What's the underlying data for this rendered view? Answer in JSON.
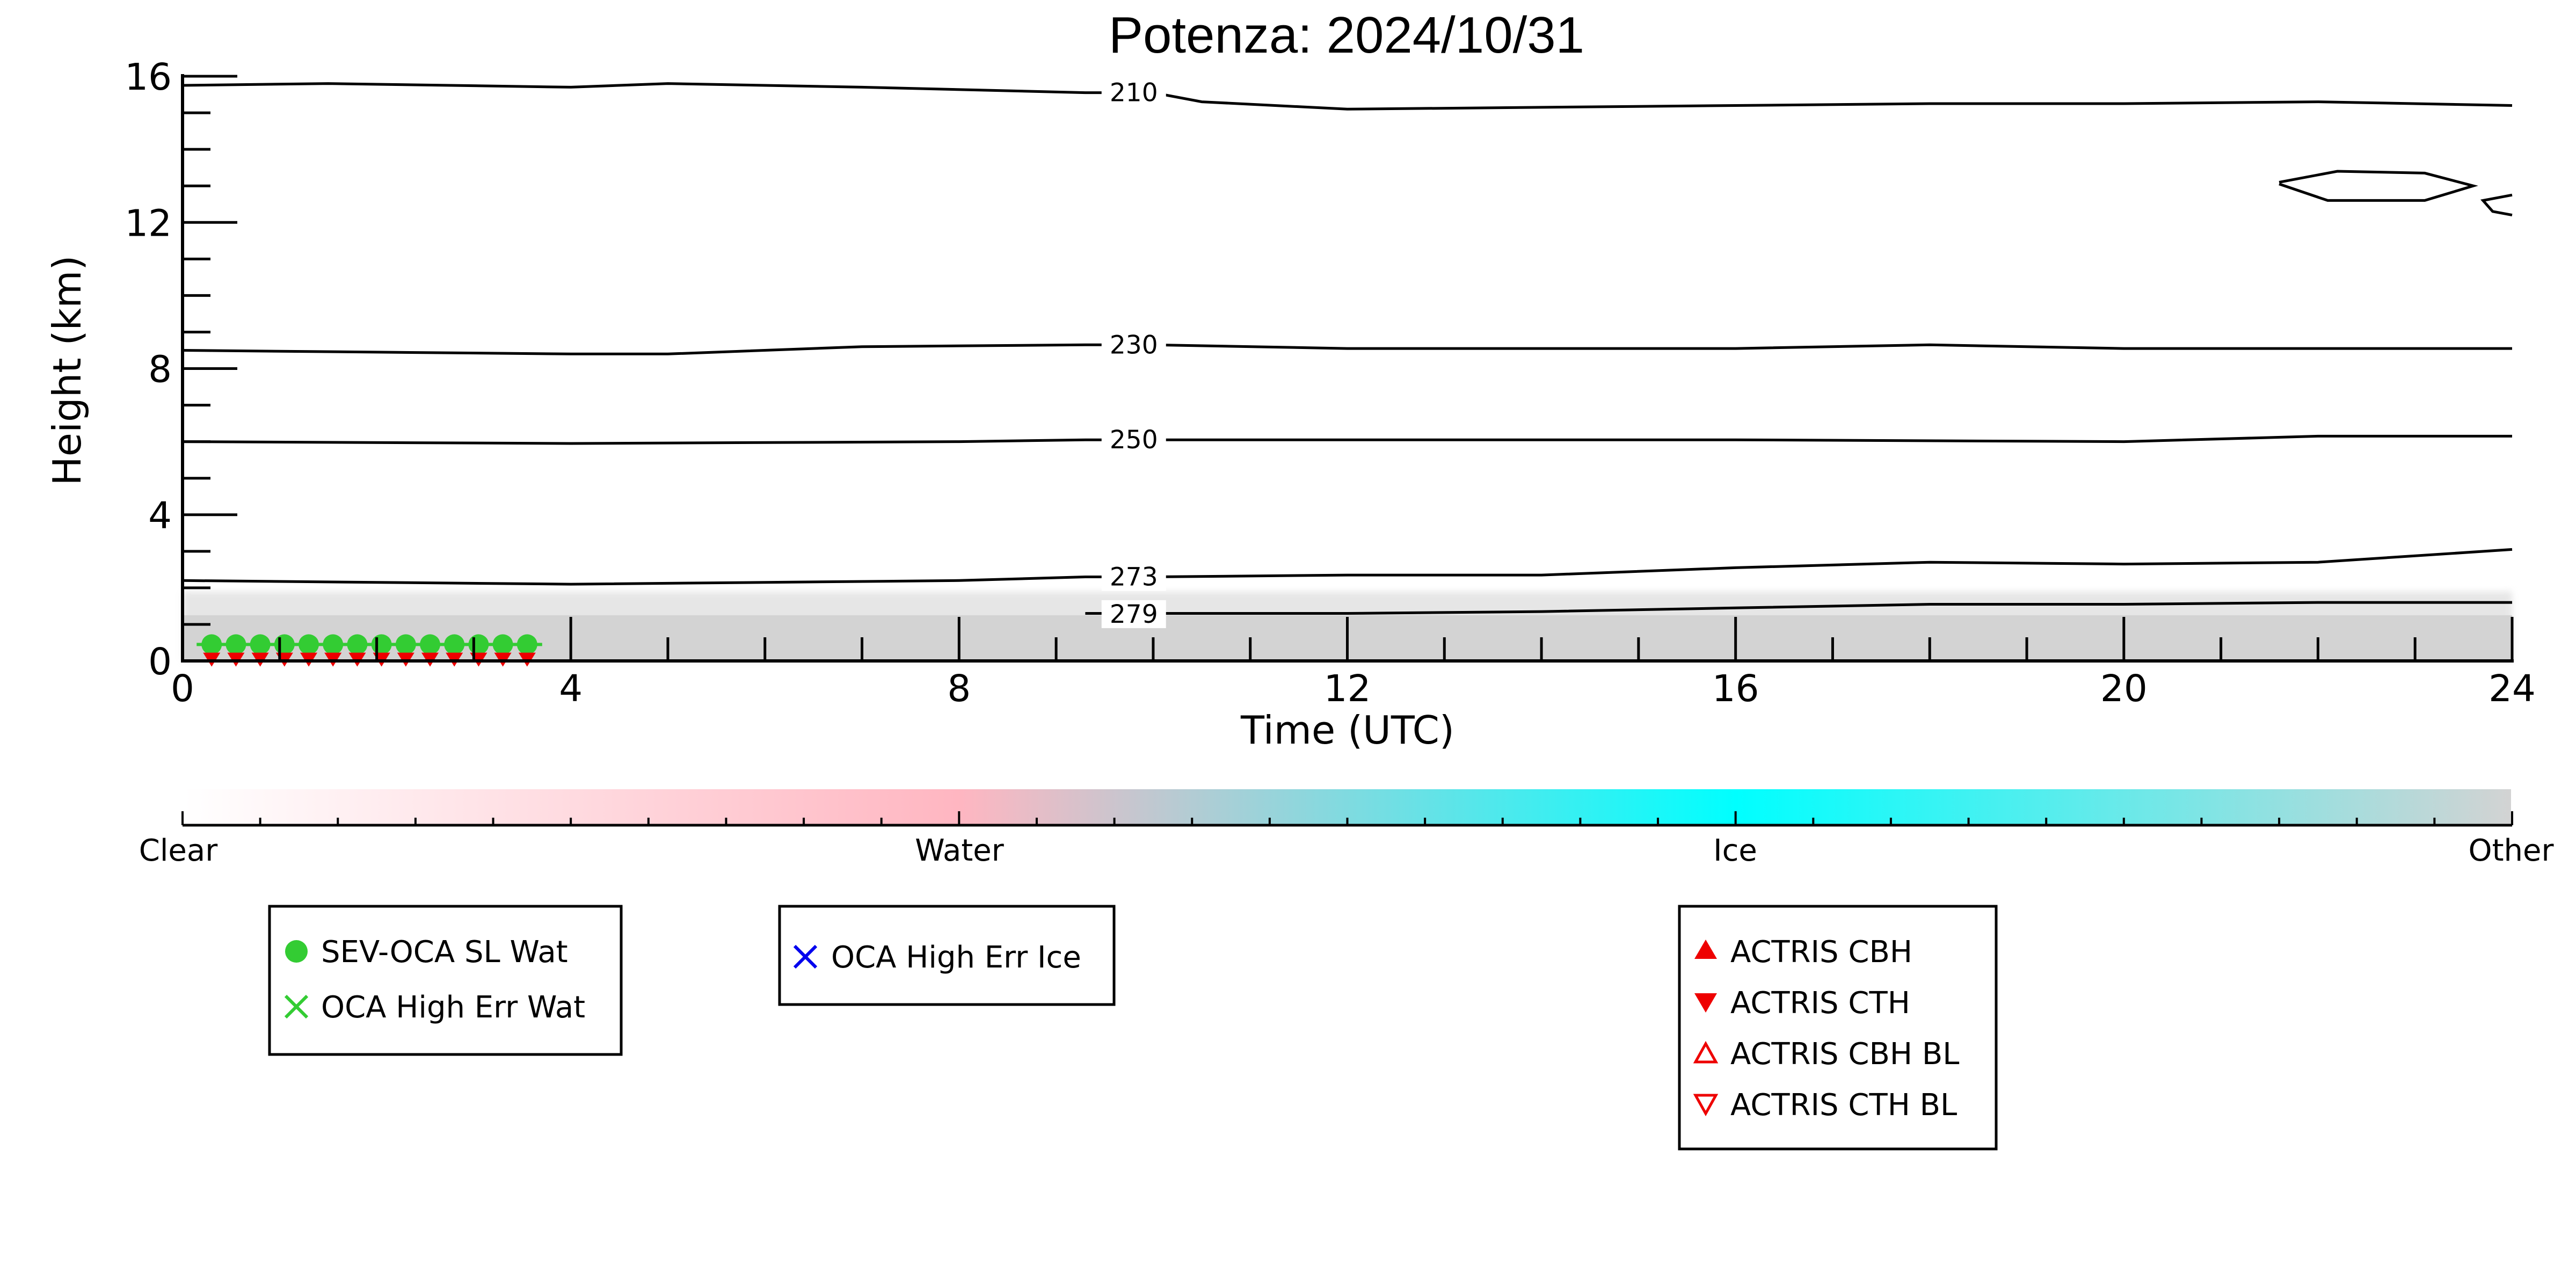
{
  "chart_data": {
    "type": "time-height cloud classification",
    "title": "Potenza: 2024/10/31",
    "xlabel": "Time (UTC)",
    "ylabel": "Height (km)",
    "xlim": [
      0,
      24
    ],
    "ylim": [
      0,
      16
    ],
    "x_ticks": [
      "0",
      "4",
      "8",
      "12",
      "16",
      "20",
      "24"
    ],
    "y_ticks": [
      "0",
      "4",
      "8",
      "12",
      "16"
    ],
    "temperature_contours": [
      {
        "label": "210",
        "points": [
          [
            0,
            15.75
          ],
          [
            1.5,
            15.8
          ],
          [
            4,
            15.7
          ],
          [
            5,
            15.8
          ],
          [
            7,
            15.7
          ],
          [
            9.3,
            15.55
          ],
          [
            10,
            15.55
          ],
          [
            10.5,
            15.3
          ],
          [
            12,
            15.1
          ],
          [
            14,
            15.15
          ],
          [
            16,
            15.2
          ],
          [
            18,
            15.25
          ],
          [
            20,
            15.25
          ],
          [
            22,
            15.3
          ],
          [
            24,
            15.2
          ]
        ]
      },
      {
        "label": "230",
        "points": [
          [
            0,
            8.5
          ],
          [
            2,
            8.45
          ],
          [
            4,
            8.4
          ],
          [
            5,
            8.4
          ],
          [
            7,
            8.6
          ],
          [
            9.3,
            8.65
          ],
          [
            10,
            8.65
          ],
          [
            12,
            8.55
          ],
          [
            14,
            8.55
          ],
          [
            16,
            8.55
          ],
          [
            18,
            8.65
          ],
          [
            20,
            8.55
          ],
          [
            22,
            8.55
          ],
          [
            24,
            8.55
          ]
        ]
      },
      {
        "label": "250",
        "points": [
          [
            0,
            6.0
          ],
          [
            4,
            5.95
          ],
          [
            8,
            6.0
          ],
          [
            9.3,
            6.05
          ],
          [
            10,
            6.05
          ],
          [
            12,
            6.05
          ],
          [
            16,
            6.05
          ],
          [
            20,
            6.0
          ],
          [
            22,
            6.15
          ],
          [
            24,
            6.15
          ]
        ]
      },
      {
        "label": "273",
        "points": [
          [
            0,
            2.2
          ],
          [
            4,
            2.1
          ],
          [
            8,
            2.2
          ],
          [
            9.3,
            2.3
          ],
          [
            10,
            2.3
          ],
          [
            12,
            2.35
          ],
          [
            14,
            2.35
          ],
          [
            16,
            2.55
          ],
          [
            18,
            2.7
          ],
          [
            20,
            2.65
          ],
          [
            22,
            2.7
          ],
          [
            24,
            3.05
          ]
        ]
      },
      {
        "label": "279",
        "points": [
          [
            9.3,
            1.3
          ],
          [
            10,
            1.3
          ],
          [
            12,
            1.3
          ],
          [
            14,
            1.35
          ],
          [
            16,
            1.45
          ],
          [
            18,
            1.55
          ],
          [
            20,
            1.55
          ],
          [
            22,
            1.6
          ],
          [
            24,
            1.6
          ]
        ]
      }
    ],
    "contour_label_positions": [
      {
        "label": "210",
        "x": 9.8,
        "y": 15.55
      },
      {
        "label": "230",
        "x": 9.8,
        "y": 8.65
      },
      {
        "label": "250",
        "x": 9.8,
        "y": 6.05
      },
      {
        "label": "273",
        "x": 9.8,
        "y": 2.3
      },
      {
        "label": "279",
        "x": 9.8,
        "y": 1.28
      }
    ],
    "closed_contour": {
      "points": [
        [
          21.6,
          13.1
        ],
        [
          22.2,
          13.4
        ],
        [
          23.1,
          13.35
        ],
        [
          23.6,
          13.0
        ],
        [
          23.1,
          12.6
        ],
        [
          22.1,
          12.6
        ],
        [
          21.6,
          13.05
        ]
      ]
    },
    "partial_contour": {
      "points": [
        [
          24,
          12.75
        ],
        [
          23.7,
          12.6
        ],
        [
          23.8,
          12.3
        ],
        [
          24,
          12.2
        ]
      ]
    },
    "cloud_layer": {
      "class": "Other",
      "x_range": [
        0,
        24
      ],
      "top_km": 1.25,
      "haze_top_km": 1.9
    },
    "sev_oca_sl_wat": {
      "x": [
        0.3,
        0.55,
        0.8,
        1.05,
        1.3,
        1.55,
        1.8,
        2.05,
        2.3,
        2.55,
        2.8,
        3.05,
        3.3,
        3.55
      ],
      "y": [
        0.45,
        0.45,
        0.45,
        0.45,
        0.45,
        0.45,
        0.45,
        0.45,
        0.45,
        0.45,
        0.45,
        0.45,
        0.45,
        0.45
      ]
    },
    "actris_cth": {
      "x": [
        0.3,
        0.55,
        0.8,
        1.05,
        1.3,
        1.55,
        1.8,
        2.05,
        2.3,
        2.55,
        2.8,
        3.05,
        3.3,
        3.55
      ],
      "y": [
        0.05,
        0.05,
        0.05,
        0.05,
        0.05,
        0.05,
        0.05,
        0.05,
        0.05,
        0.05,
        0.05,
        0.05,
        0.05,
        0.05
      ]
    },
    "colorbar": {
      "labels": [
        "Clear",
        "Water",
        "Ice",
        "Other"
      ],
      "stops": [
        "#ffffff",
        "#ffb6c1",
        "#00ffff",
        "#d3d3d3"
      ]
    },
    "legends": [
      {
        "items": [
          {
            "label": "SEV-OCA SL Wat",
            "marker": "filled-circle",
            "color": "#33cc33"
          },
          {
            "label": "OCA High Err Wat",
            "marker": "x",
            "color": "#33cc33"
          }
        ]
      },
      {
        "items": [
          {
            "label": "OCA High Err Ice",
            "marker": "x",
            "color": "#0000ee"
          }
        ]
      },
      {
        "items": [
          {
            "label": "ACTRIS CBH",
            "marker": "triangle-up-filled",
            "color": "#ee0000"
          },
          {
            "label": "ACTRIS CTH",
            "marker": "triangle-down-filled",
            "color": "#ee0000"
          },
          {
            "label": "ACTRIS CBH BL",
            "marker": "triangle-up-open",
            "color": "#ee0000"
          },
          {
            "label": "ACTRIS CTH BL",
            "marker": "triangle-down-open",
            "color": "#ee0000"
          }
        ]
      }
    ]
  }
}
